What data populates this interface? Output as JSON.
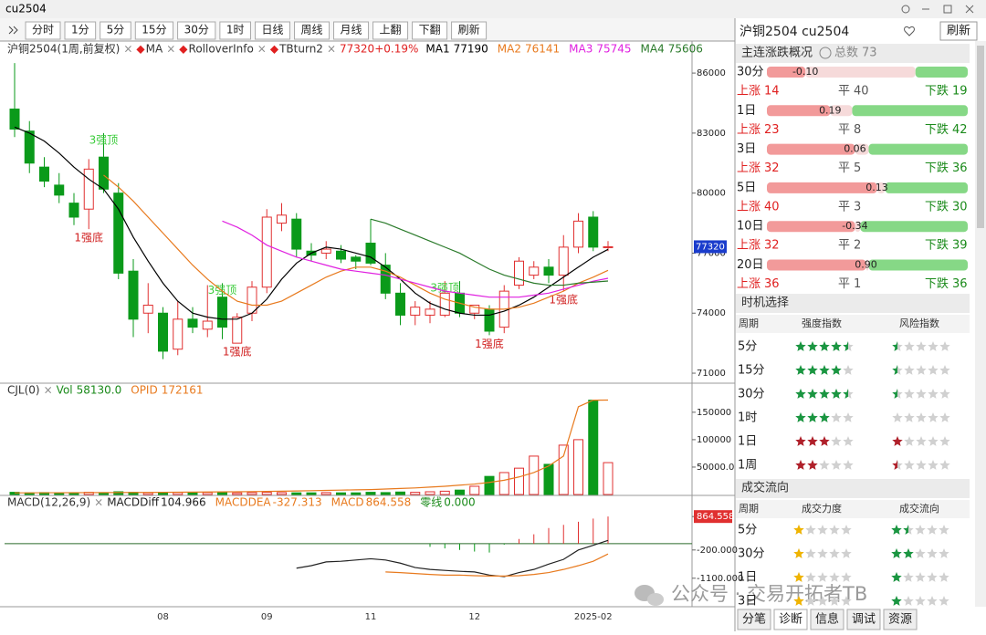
{
  "window": {
    "title": "cu2504",
    "refresh": "刷新"
  },
  "toolbar": [
    "分时",
    "1分",
    "5分",
    "15分",
    "30分",
    "1时",
    "日线",
    "周线",
    "月线",
    "上翻",
    "下翻",
    "刷新"
  ],
  "main": {
    "remove": "×",
    "marker": "◆",
    "indicators": [
      "沪铜2504(1周,前复权)",
      "MA",
      "RolloverInfo",
      "TBturn2"
    ],
    "last": {
      "value": 77320,
      "change": {
        "value": 0.19,
        "label": "+0.19%"
      }
    },
    "ma": [
      {
        "name": "MA1",
        "value": 77190,
        "color": "#000000",
        "values": [
          83300,
          83000,
          82600,
          82000,
          81300,
          80700,
          80200,
          79200,
          77800,
          76600,
          75500,
          74600,
          74000,
          73800,
          73700,
          73700,
          74000,
          74700,
          75700,
          76500,
          77000,
          77300,
          77200,
          77000,
          76800,
          76300,
          75700,
          75000,
          74500,
          74200,
          74000,
          73900,
          73900,
          74100,
          74400,
          74800,
          75300,
          75800,
          76300,
          76800,
          77190
        ]
      },
      {
        "name": "MA2",
        "value": 76141,
        "color": "#e87a1e",
        "values": [
          null,
          null,
          null,
          null,
          null,
          null,
          80900,
          80300,
          79600,
          78800,
          78000,
          77200,
          76400,
          75700,
          75100,
          74600,
          74400,
          74400,
          74600,
          75000,
          75400,
          75800,
          76100,
          76300,
          76300,
          76100,
          75800,
          75400,
          75000,
          74700,
          74500,
          74300,
          74200,
          74200,
          74300,
          74500,
          74800,
          75100,
          75500,
          75800,
          76141
        ]
      },
      {
        "name": "MA3",
        "value": 75745,
        "color": "#e020e0",
        "values": [
          null,
          null,
          null,
          null,
          null,
          null,
          null,
          null,
          null,
          null,
          null,
          null,
          null,
          null,
          78600,
          78300,
          77900,
          77400,
          77100,
          76800,
          76600,
          76400,
          76200,
          76100,
          76000,
          75900,
          75700,
          75500,
          75300,
          75100,
          75000,
          74900,
          74800,
          74800,
          74800,
          74900,
          75000,
          75200,
          75400,
          75600,
          75745
        ]
      },
      {
        "name": "MA4",
        "value": 75606,
        "color": "#2a7a2a",
        "values": [
          null,
          null,
          null,
          null,
          null,
          null,
          null,
          null,
          null,
          null,
          null,
          null,
          null,
          null,
          null,
          null,
          null,
          null,
          null,
          null,
          null,
          null,
          null,
          null,
          78700,
          78500,
          78200,
          77900,
          77600,
          77300,
          77000,
          76600,
          76200,
          75900,
          75700,
          75500,
          75400,
          75400,
          75500,
          75550,
          75606
        ]
      }
    ],
    "ylim": [
      70500,
      87600
    ],
    "yticks": [
      86000,
      83000,
      80000,
      77000,
      74000,
      71000
    ],
    "candles": [
      {
        "o": 84200,
        "h": 86500,
        "l": 82800,
        "c": 83200
      },
      {
        "o": 83100,
        "h": 83600,
        "l": 81000,
        "c": 81500
      },
      {
        "o": 81300,
        "h": 81800,
        "l": 80300,
        "c": 80600
      },
      {
        "o": 80400,
        "h": 81000,
        "l": 79500,
        "c": 79900
      },
      {
        "o": 79500,
        "h": 80000,
        "l": 78400,
        "c": 78800
      },
      {
        "o": 79200,
        "h": 81700,
        "l": 78200,
        "c": 81200
      },
      {
        "o": 81800,
        "h": 83000,
        "l": 80000,
        "c": 80200
      },
      {
        "o": 80000,
        "h": 80500,
        "l": 75700,
        "c": 76000
      },
      {
        "o": 76100,
        "h": 76700,
        "l": 72800,
        "c": 73700
      },
      {
        "o": 74000,
        "h": 75500,
        "l": 73000,
        "c": 74400
      },
      {
        "o": 74000,
        "h": 74300,
        "l": 71700,
        "c": 72100
      },
      {
        "o": 72200,
        "h": 74600,
        "l": 71900,
        "c": 73700
      },
      {
        "o": 73700,
        "h": 74300,
        "l": 73000,
        "c": 73300
      },
      {
        "o": 73200,
        "h": 75400,
        "l": 72800,
        "c": 73600
      },
      {
        "o": 74800,
        "h": 75500,
        "l": 72700,
        "c": 73300
      },
      {
        "o": 72500,
        "h": 74000,
        "l": 72500,
        "c": 73800
      },
      {
        "o": 74000,
        "h": 75600,
        "l": 73600,
        "c": 75300
      },
      {
        "o": 75300,
        "h": 79200,
        "l": 75000,
        "c": 78800
      },
      {
        "o": 78500,
        "h": 79500,
        "l": 78100,
        "c": 78900
      },
      {
        "o": 78700,
        "h": 79000,
        "l": 76800,
        "c": 77200
      },
      {
        "o": 77100,
        "h": 77500,
        "l": 76600,
        "c": 76900
      },
      {
        "o": 77000,
        "h": 77600,
        "l": 76700,
        "c": 77200
      },
      {
        "o": 77100,
        "h": 77400,
        "l": 76500,
        "c": 76700
      },
      {
        "o": 76800,
        "h": 76900,
        "l": 76200,
        "c": 76600
      },
      {
        "o": 77500,
        "h": 78700,
        "l": 76400,
        "c": 76500
      },
      {
        "o": 76400,
        "h": 77000,
        "l": 74700,
        "c": 75000
      },
      {
        "o": 75000,
        "h": 75500,
        "l": 73400,
        "c": 73900
      },
      {
        "o": 73900,
        "h": 74600,
        "l": 73400,
        "c": 74300
      },
      {
        "o": 73900,
        "h": 74600,
        "l": 73500,
        "c": 74200
      },
      {
        "o": 73900,
        "h": 75600,
        "l": 73800,
        "c": 75000
      },
      {
        "o": 75000,
        "h": 75600,
        "l": 73800,
        "c": 74000
      },
      {
        "o": 74000,
        "h": 74400,
        "l": 73700,
        "c": 74400
      },
      {
        "o": 74200,
        "h": 74400,
        "l": 72900,
        "c": 73100
      },
      {
        "o": 73300,
        "h": 75400,
        "l": 73000,
        "c": 75100
      },
      {
        "o": 75400,
        "h": 76800,
        "l": 75200,
        "c": 76600
      },
      {
        "o": 75900,
        "h": 76600,
        "l": 75700,
        "c": 76300
      },
      {
        "o": 76300,
        "h": 76700,
        "l": 75500,
        "c": 75900
      },
      {
        "o": 75900,
        "h": 77900,
        "l": 75100,
        "c": 77300
      },
      {
        "o": 77300,
        "h": 79000,
        "l": 77000,
        "c": 78600
      },
      {
        "o": 78800,
        "h": 79100,
        "l": 77100,
        "c": 77300
      },
      {
        "o": 77300,
        "h": 77600,
        "l": 77100,
        "c": 77320
      }
    ],
    "signals": [
      null,
      null,
      null,
      null,
      null,
      "1强底",
      "3强顶",
      null,
      null,
      null,
      null,
      null,
      null,
      null,
      "3强顶",
      "1强底",
      null,
      null,
      null,
      null,
      null,
      null,
      null,
      null,
      null,
      null,
      null,
      null,
      null,
      "3强顶",
      null,
      null,
      "1强底",
      null,
      null,
      null,
      null,
      "1强底",
      null,
      null,
      null
    ],
    "dates": [
      null,
      null,
      null,
      null,
      null,
      null,
      null,
      null,
      null,
      null,
      "08",
      null,
      null,
      null,
      null,
      null,
      null,
      "09",
      null,
      null,
      null,
      null,
      null,
      null,
      "11",
      null,
      null,
      null,
      null,
      null,
      null,
      "12",
      null,
      null,
      null,
      null,
      null,
      null,
      null,
      "2025-02",
      null
    ]
  },
  "volume": {
    "name": "CJL(0)",
    "vol": {
      "name": "Vol",
      "value": 58130,
      "label": "58130.0"
    },
    "opid": {
      "name": "OPID",
      "value": 172161
    },
    "ylim": [
      0,
      203000
    ],
    "yticks": [
      150000,
      100000,
      {
        "value": 50000,
        "label": "50000.0"
      }
    ],
    "values": [
      4000,
      3000,
      3500,
      3000,
      2500,
      4000,
      3000,
      5000,
      4000,
      3000,
      4000,
      3500,
      3000,
      3500,
      4000,
      3000,
      3500,
      4000,
      3500,
      3000,
      3000,
      3500,
      3000,
      3000,
      4000,
      3500,
      4500,
      4000,
      5000,
      6000,
      8000,
      15000,
      33000,
      40000,
      48000,
      70000,
      55000,
      90000,
      100000,
      172000,
      58130
    ],
    "opid_values": [
      3000,
      3000,
      3200,
      3200,
      3300,
      3400,
      3500,
      3600,
      3700,
      3800,
      4000,
      4200,
      4400,
      4600,
      4800,
      5000,
      5300,
      5600,
      6000,
      6500,
      7000,
      7500,
      8000,
      8500,
      9000,
      10000,
      11000,
      12000,
      13500,
      15000,
      17000,
      19000,
      22000,
      26000,
      32000,
      40000,
      52000,
      70000,
      160000,
      172000,
      172161
    ]
  },
  "macd": {
    "name": "MACD(12,26,9)",
    "diff": {
      "name": "MACDDiff",
      "value": 104.966
    },
    "dea": {
      "name": "MACDDEA",
      "value": -327.313
    },
    "bar": {
      "name": "MACD",
      "value": 864.558
    },
    "zero": {
      "name": "零线",
      "value": 0,
      "label": "0.000"
    },
    "ylim": [
      -1920,
      1480
    ],
    "yticks": [
      864.558,
      {
        "value": -200,
        "label": "-200.000"
      },
      {
        "value": -1100,
        "label": "-1100.000"
      }
    ],
    "diff_values": [
      null,
      null,
      null,
      null,
      null,
      null,
      null,
      null,
      null,
      null,
      null,
      null,
      null,
      null,
      null,
      null,
      null,
      null,
      null,
      -780,
      -700,
      -580,
      -560,
      -520,
      -480,
      -520,
      -620,
      -760,
      -820,
      -850,
      -880,
      -900,
      -1000,
      -1050,
      -920,
      -820,
      -650,
      -500,
      -200,
      -50,
      104.966
    ],
    "dea_values": [
      null,
      null,
      null,
      null,
      null,
      null,
      null,
      null,
      null,
      null,
      null,
      null,
      null,
      null,
      null,
      null,
      null,
      null,
      null,
      null,
      null,
      null,
      null,
      null,
      null,
      -900,
      -920,
      -950,
      -980,
      -1000,
      -1000,
      -1020,
      -1030,
      -1030,
      -1020,
      -980,
      -920,
      -820,
      -700,
      -560,
      -327.313
    ],
    "bar_values": [
      null,
      null,
      null,
      null,
      null,
      null,
      null,
      null,
      null,
      null,
      null,
      null,
      null,
      null,
      null,
      null,
      null,
      null,
      null,
      null,
      null,
      null,
      null,
      null,
      null,
      null,
      null,
      null,
      -100,
      -150,
      -200,
      -250,
      -280,
      -30,
      150,
      300,
      500,
      600,
      700,
      800,
      864.558
    ]
  },
  "panel": {
    "title": "沪铜2504 cu2504",
    "refresh": "刷新",
    "overview": {
      "title": "主连涨跌概况",
      "total_label": "总数",
      "total": 73,
      "up_label": "上涨",
      "flat_label": "平",
      "down_label": "下跌",
      "rows": [
        {
          "period": "30分",
          "value": {
            "value": -0.1,
            "label": "-0.10"
          },
          "up": 14,
          "flat": 40,
          "down": 19
        },
        {
          "period": "1日",
          "value": 0.19,
          "up": 23,
          "flat": 8,
          "down": 42
        },
        {
          "period": "3日",
          "value": 0.06,
          "up": 32,
          "flat": 5,
          "down": 36
        },
        {
          "period": "5日",
          "value": 0.13,
          "up": 40,
          "flat": 3,
          "down": 30
        },
        {
          "period": "10日",
          "value": -0.34,
          "up": 32,
          "flat": 2,
          "down": 39
        },
        {
          "period": "20日",
          "value": {
            "value": 0.9,
            "label": "0.90"
          },
          "up": 36,
          "flat": 1,
          "down": 36
        }
      ]
    },
    "timing": {
      "title": "时机选择",
      "headers": [
        "周期",
        "强度指数",
        "风险指数"
      ],
      "rows": [
        {
          "period": "5分",
          "strength": 4.5,
          "risk": 0.5,
          "color": "#1a9641"
        },
        {
          "period": "15分",
          "strength": 4,
          "risk": 0.5,
          "color": "#1a9641"
        },
        {
          "period": "30分",
          "strength": 4.5,
          "risk": 0.5,
          "color": "#1a9641"
        },
        {
          "period": "1时",
          "strength": 3,
          "risk": 0,
          "color": "#1a9641"
        },
        {
          "period": "1日",
          "strength": 3,
          "risk": 1,
          "color": "#b0202a"
        },
        {
          "period": "1周",
          "strength": 2,
          "risk": 0.5,
          "color": "#b0202a"
        }
      ]
    },
    "flow": {
      "title": "成交流向",
      "headers": [
        "周期",
        "成交力度",
        "成交流向"
      ],
      "rows": [
        {
          "period": "5分",
          "force": 1,
          "flow": 1.5
        },
        {
          "period": "30分",
          "force": 1,
          "flow": 2
        },
        {
          "period": "1日",
          "force": 1,
          "flow": 1
        },
        {
          "period": "3日",
          "force": 1,
          "flow": 1
        }
      ]
    },
    "tabs": [
      "分笔",
      "诊断",
      "信息",
      "调试",
      "资源"
    ]
  },
  "watermark": "公众号 · 交易开拓者TB"
}
